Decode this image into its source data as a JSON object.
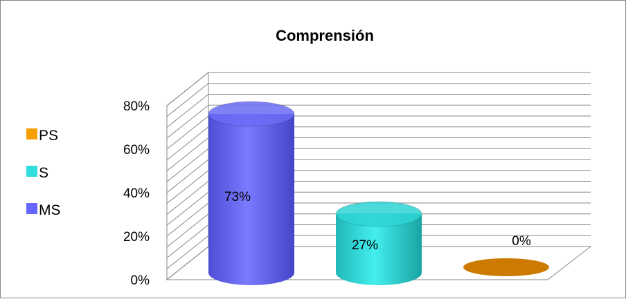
{
  "chart_data": {
    "type": "bar",
    "style": "3d-cylinder",
    "title": "Comprensión",
    "xlabel": "",
    "ylabel": "",
    "ylim": [
      0,
      80
    ],
    "y_ticks": [
      "0%",
      "20%",
      "40%",
      "60%",
      "80%"
    ],
    "grid": true,
    "legend_position": "left",
    "series": [
      {
        "name": "MS",
        "value": 73,
        "label": "73%",
        "color": "#6b6bf5"
      },
      {
        "name": "S",
        "value": 27,
        "label": "27%",
        "color": "#2ed3d3"
      },
      {
        "name": "PS",
        "value": 0,
        "label": "0%",
        "color": "#cc7a00"
      }
    ],
    "legend": [
      {
        "name": "PS",
        "color": "#f5a000"
      },
      {
        "name": "S",
        "color": "#33dede"
      },
      {
        "name": "MS",
        "color": "#6666ff"
      }
    ]
  }
}
